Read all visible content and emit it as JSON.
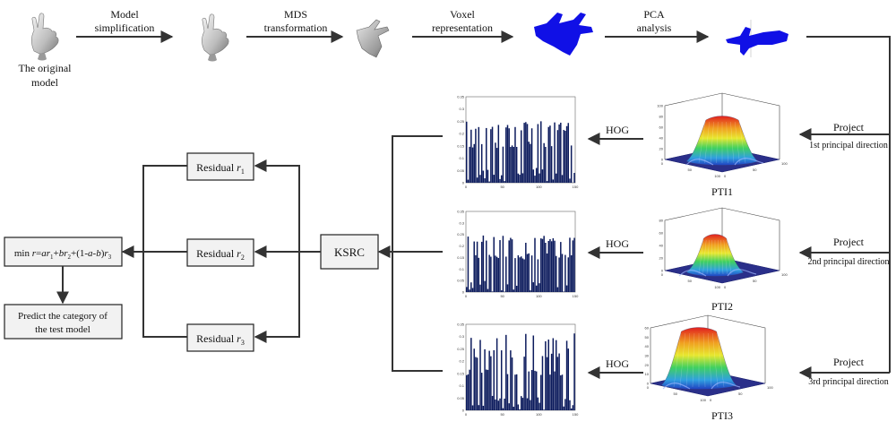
{
  "pipeline": {
    "original_label_line1": "The original",
    "original_label_line2": "model",
    "steps": [
      {
        "line1": "Model",
        "line2": "simplification"
      },
      {
        "line1": "MDS",
        "line2": "transformation"
      },
      {
        "line1": "Voxel",
        "line2": "representation"
      },
      {
        "line1": "PCA",
        "line2": "analysis"
      }
    ]
  },
  "projections": [
    {
      "project_label": "Project",
      "direction_label": "1st principal direction",
      "pti_label": "PTI1",
      "hog_label": "HOG"
    },
    {
      "project_label": "Project",
      "direction_label": "2nd principal direction",
      "pti_label": "PTI2",
      "hog_label": "HOG"
    },
    {
      "project_label": "Project",
      "direction_label": "3rd principal direction",
      "pti_label": "PTI3",
      "hog_label": "HOG"
    }
  ],
  "ksrc_label": "KSRC",
  "residuals": [
    {
      "word": "Residual",
      "symbol": "r",
      "sub": "1"
    },
    {
      "word": "Residual",
      "symbol": "r",
      "sub": "2"
    },
    {
      "word": "Residual",
      "symbol": "r",
      "sub": "3"
    }
  ],
  "fusion": {
    "prefix": "min ",
    "parts": [
      {
        "t": "r",
        "i": true,
        "s": false
      },
      {
        "t": "=",
        "i": false,
        "s": false
      },
      {
        "t": "ar",
        "i": true,
        "s": false
      },
      {
        "t": "1",
        "i": false,
        "s": true
      },
      {
        "t": "+",
        "i": false,
        "s": false
      },
      {
        "t": "br",
        "i": true,
        "s": false
      },
      {
        "t": "2",
        "i": false,
        "s": true
      },
      {
        "t": "+(1-",
        "i": false,
        "s": false
      },
      {
        "t": "a",
        "i": true,
        "s": false
      },
      {
        "t": "-",
        "i": false,
        "s": false
      },
      {
        "t": "b",
        "i": true,
        "s": false
      },
      {
        "t": ")",
        "i": false,
        "s": false
      },
      {
        "t": "r",
        "i": true,
        "s": false
      },
      {
        "t": "3",
        "i": false,
        "s": true
      }
    ]
  },
  "predict": {
    "line1": "Predict the category of",
    "line2": "the test model"
  },
  "hog_histograms": {
    "color": "#0b1a5c",
    "x_ticks": [
      "0",
      "50",
      "100",
      "150"
    ],
    "y_ticks": [
      [
        "0",
        "0.05",
        "0.1",
        "0.15",
        "0.2",
        "0.25",
        "0.3",
        "0.35"
      ],
      [
        "0",
        "0.05",
        "0.1",
        "0.15",
        "0.2",
        "0.25",
        "0.3",
        "0.35"
      ],
      [
        "0",
        "0.05",
        "0.1",
        "0.15",
        "0.2",
        "0.25",
        "0.3",
        "0.35"
      ]
    ]
  },
  "pti_surfaces": {
    "z_ticks": [
      [
        "0",
        "20",
        "40",
        "60",
        "80",
        "100"
      ],
      [
        "0",
        "20",
        "40",
        "60",
        "80"
      ],
      [
        "0",
        "10",
        "20",
        "30",
        "40",
        "50",
        "60"
      ]
    ],
    "xy_ticks": [
      "0",
      "50",
      "100"
    ],
    "plane_color": "#2a2f8a"
  },
  "colors": {
    "voxel_blue": "#1010e6",
    "arrow": "#333333",
    "box_fill": "#f2f2f2"
  }
}
